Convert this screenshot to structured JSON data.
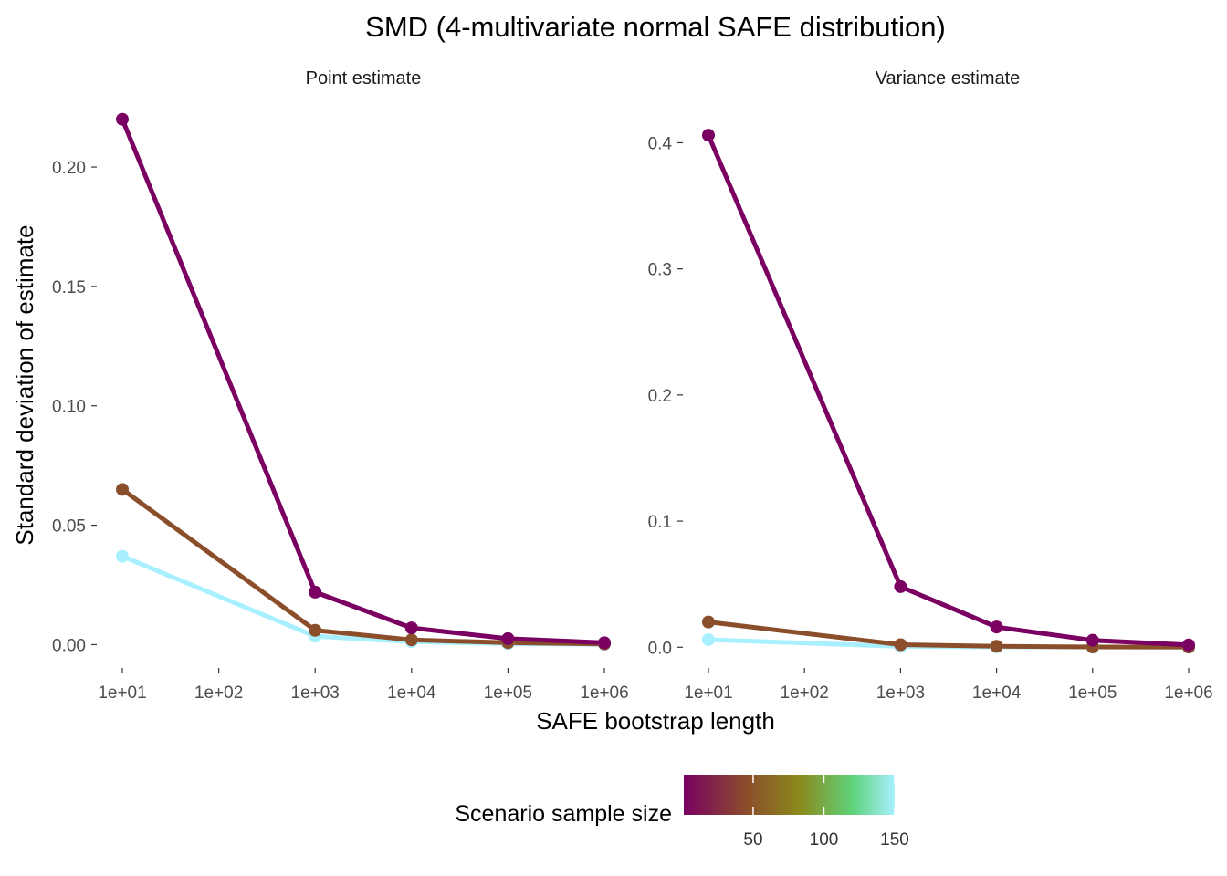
{
  "chart_data": {
    "type": "line",
    "title": "SMD (4-multivariate normal SAFE distribution)",
    "xlabel": "SAFE bootstrap length",
    "ylabel": "Standard deviation of estimate",
    "x_scale": "log10",
    "x_ticks": [
      10,
      100,
      1000,
      10000,
      100000,
      1000000
    ],
    "x_tick_labels": [
      "1e+01",
      "1e+02",
      "1e+03",
      "1e+04",
      "1e+05",
      "1e+06"
    ],
    "x": [
      10,
      1000,
      10000,
      100000,
      1000000
    ],
    "grid": false,
    "facets": [
      {
        "label": "Point estimate",
        "ylim": [
          -0.009,
          0.226
        ],
        "y_ticks": [
          0.0,
          0.05,
          0.1,
          0.15,
          0.2
        ],
        "y_tick_labels": [
          "0.00",
          "0.05",
          "0.10",
          "0.15",
          "0.20"
        ],
        "series": [
          {
            "sample_size": 10,
            "color": "#7a0062",
            "values": [
              0.22,
              0.022,
              0.007,
              0.0025,
              0.0008
            ]
          },
          {
            "sample_size": 60,
            "color": "#8b4e2b",
            "values": [
              0.065,
              0.006,
              0.002,
              0.0008,
              0.0003
            ]
          },
          {
            "sample_size": 150,
            "color": "#a8f0ff",
            "values": [
              0.037,
              0.0035,
              0.0012,
              0.0004,
              0.0001
            ]
          }
        ]
      },
      {
        "label": "Variance estimate",
        "ylim": [
          -0.015,
          0.43
        ],
        "y_ticks": [
          0.0,
          0.1,
          0.2,
          0.3,
          0.4
        ],
        "y_tick_labels": [
          "0.0",
          "0.1",
          "0.2",
          "0.3",
          "0.4"
        ],
        "series": [
          {
            "sample_size": 10,
            "color": "#7a0062",
            "values": [
              0.406,
              0.048,
              0.016,
              0.0055,
              0.0018
            ]
          },
          {
            "sample_size": 60,
            "color": "#8b4e2b",
            "values": [
              0.02,
              0.002,
              0.0007,
              0.0002,
              0.0001
            ]
          },
          {
            "sample_size": 150,
            "color": "#a8f0ff",
            "values": [
              0.006,
              0.0006,
              0.0002,
              0.0001,
              3e-05
            ]
          }
        ]
      }
    ],
    "legend": {
      "title": "Scenario sample size",
      "placement": "bottom",
      "type": "colorbar",
      "range": [
        1,
        150
      ],
      "ticks": [
        50,
        100,
        150
      ],
      "tick_labels": [
        "50",
        "100",
        "150"
      ],
      "colors": [
        "#7a0062",
        "#8b4e2b",
        "#8b8a1c",
        "#5ed37a",
        "#a8f0ff"
      ]
    }
  }
}
